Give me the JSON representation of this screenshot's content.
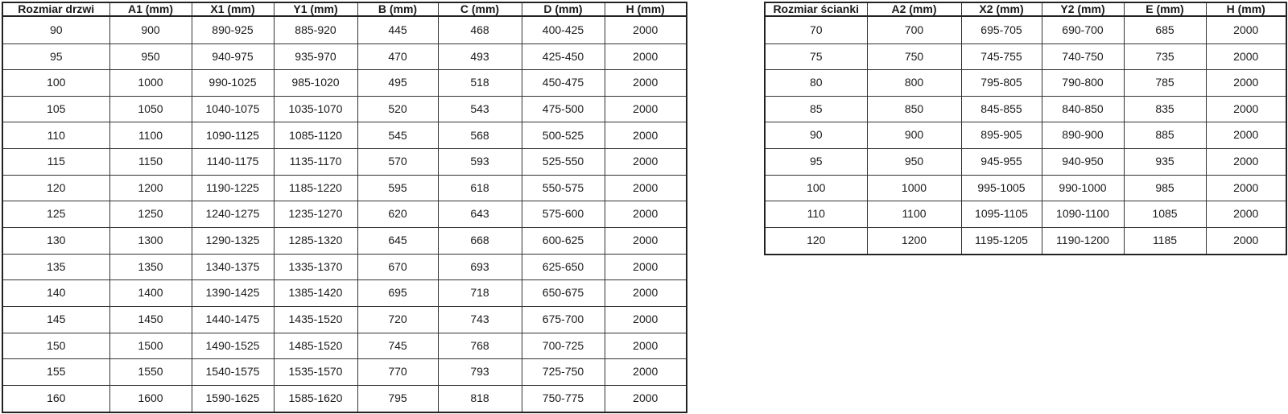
{
  "colors": {
    "background": "#ffffff",
    "border": "#333333",
    "text": "#1a1a1a"
  },
  "door_table": {
    "headers": [
      "Rozmiar drzwi",
      "A1 (mm)",
      "X1 (mm)",
      "Y1 (mm)",
      "B (mm)",
      "C (mm)",
      "D (mm)",
      "H (mm)"
    ],
    "rows": [
      [
        "90",
        "900",
        "890-925",
        "885-920",
        "445",
        "468",
        "400-425",
        "2000"
      ],
      [
        "95",
        "950",
        "940-975",
        "935-970",
        "470",
        "493",
        "425-450",
        "2000"
      ],
      [
        "100",
        "1000",
        "990-1025",
        "985-1020",
        "495",
        "518",
        "450-475",
        "2000"
      ],
      [
        "105",
        "1050",
        "1040-1075",
        "1035-1070",
        "520",
        "543",
        "475-500",
        "2000"
      ],
      [
        "110",
        "1100",
        "1090-1125",
        "1085-1120",
        "545",
        "568",
        "500-525",
        "2000"
      ],
      [
        "115",
        "1150",
        "1140-1175",
        "1135-1170",
        "570",
        "593",
        "525-550",
        "2000"
      ],
      [
        "120",
        "1200",
        "1190-1225",
        "1185-1220",
        "595",
        "618",
        "550-575",
        "2000"
      ],
      [
        "125",
        "1250",
        "1240-1275",
        "1235-1270",
        "620",
        "643",
        "575-600",
        "2000"
      ],
      [
        "130",
        "1300",
        "1290-1325",
        "1285-1320",
        "645",
        "668",
        "600-625",
        "2000"
      ],
      [
        "135",
        "1350",
        "1340-1375",
        "1335-1370",
        "670",
        "693",
        "625-650",
        "2000"
      ],
      [
        "140",
        "1400",
        "1390-1425",
        "1385-1420",
        "695",
        "718",
        "650-675",
        "2000"
      ],
      [
        "145",
        "1450",
        "1440-1475",
        "1435-1520",
        "720",
        "743",
        "675-700",
        "2000"
      ],
      [
        "150",
        "1500",
        "1490-1525",
        "1485-1520",
        "745",
        "768",
        "700-725",
        "2000"
      ],
      [
        "155",
        "1550",
        "1540-1575",
        "1535-1570",
        "770",
        "793",
        "725-750",
        "2000"
      ],
      [
        "160",
        "1600",
        "1590-1625",
        "1585-1620",
        "795",
        "818",
        "750-775",
        "2000"
      ]
    ]
  },
  "wall_table": {
    "headers": [
      "Rozmiar ścianki",
      "A2 (mm)",
      "X2 (mm)",
      "Y2 (mm)",
      "E (mm)",
      "H (mm)"
    ],
    "rows": [
      [
        "70",
        "700",
        "695-705",
        "690-700",
        "685",
        "2000"
      ],
      [
        "75",
        "750",
        "745-755",
        "740-750",
        "735",
        "2000"
      ],
      [
        "80",
        "800",
        "795-805",
        "790-800",
        "785",
        "2000"
      ],
      [
        "85",
        "850",
        "845-855",
        "840-850",
        "835",
        "2000"
      ],
      [
        "90",
        "900",
        "895-905",
        "890-900",
        "885",
        "2000"
      ],
      [
        "95",
        "950",
        "945-955",
        "940-950",
        "935",
        "2000"
      ],
      [
        "100",
        "1000",
        "995-1005",
        "990-1000",
        "985",
        "2000"
      ],
      [
        "110",
        "1100",
        "1095-1105",
        "1090-1100",
        "1085",
        "2000"
      ],
      [
        "120",
        "1200",
        "1195-1205",
        "1190-1200",
        "1185",
        "2000"
      ]
    ]
  }
}
